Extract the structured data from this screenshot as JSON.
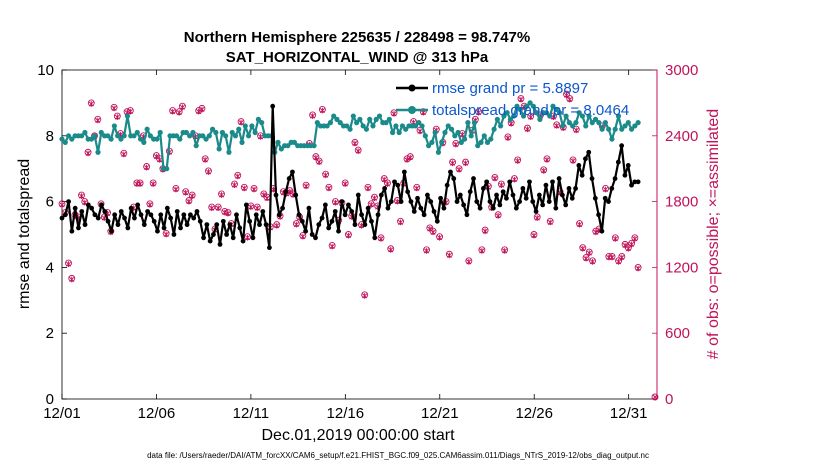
{
  "chart_data": {
    "type": "line",
    "title_line1": "Northern Hemisphere 225635 / 228498 = 98.747%",
    "title_line2": "SAT_HORIZONTAL_WIND @ 313 hPa",
    "xlabel": "Dec.01,2019 00:00:00 start",
    "ylabel_left": "rmse and totalspread",
    "ylabel_right": "# of obs: o=possible; ×=assimilated",
    "footer": "data file: /Users/raeder/DAI/ATM_forcXX/CAM6_setup/f.e21.FHIST_BGC.f09_025.CAM6assim.011/Diags_NTrS_2019-12/obs_diag_output.nc",
    "xlim": [
      1,
      32.5
    ],
    "ylim_left": [
      0,
      10
    ],
    "ylim_right": [
      0,
      3000
    ],
    "x_ticks": [
      1,
      6,
      11,
      16,
      21,
      26,
      31
    ],
    "x_tick_labels": [
      "12/01",
      "12/06",
      "12/11",
      "12/16",
      "12/21",
      "12/26",
      "12/31"
    ],
    "y_ticks_left": [
      0,
      2,
      4,
      6,
      8,
      10
    ],
    "y_ticks_right": [
      0,
      600,
      1200,
      1800,
      2400,
      3000
    ],
    "colors": {
      "rmse": "#000000",
      "spread": "#1a8a8a",
      "obs": "#c0135a",
      "legend_text": "#0b57d0"
    },
    "series": [
      {
        "name": "rmse grand pr = 5.8897",
        "kind": "rmse",
        "values": [
          5.5,
          5.6,
          6.0,
          5.1,
          5.8,
          5.2,
          5.7,
          5.3,
          5.9,
          5.8,
          5.6,
          5.5,
          5.9,
          5.7,
          5.4,
          5.1,
          5.6,
          5.3,
          5.7,
          5.5,
          5.2,
          5.8,
          5.5,
          5.9,
          5.6,
          5.3,
          5.7,
          5.6,
          5.4,
          5.1,
          5.6,
          5.2,
          5.8,
          5.5,
          5.0,
          5.7,
          5.2,
          5.6,
          5.3,
          5.6,
          5.5,
          5.7,
          5.4,
          4.9,
          5.3,
          4.8,
          5.0,
          5.3,
          4.7,
          5.4,
          5.0,
          5.3,
          4.9,
          5.6,
          5.2,
          4.8,
          5.9,
          5.4,
          4.9,
          5.6,
          5.3,
          5.7,
          5.3,
          4.6,
          8.9,
          6.2,
          5.6,
          5.8,
          6.3,
          6.7,
          6.9,
          6.2,
          5.6,
          5.4,
          5.1,
          5.8,
          5.0,
          4.9,
          5.3,
          5.5,
          5.9,
          5.2,
          5.4,
          5.7,
          5.1,
          6.0,
          5.6,
          5.9,
          5.7,
          5.3,
          6.2,
          5.6,
          5.3,
          5.8,
          5.4,
          4.9,
          5.6,
          6.2,
          6.4,
          5.8,
          6.0,
          6.6,
          6.5,
          6.0,
          6.9,
          6.3,
          6.0,
          5.7,
          6.1,
          5.8,
          5.6,
          6.2,
          6.0,
          5.7,
          5.4,
          6.1,
          5.8,
          6.5,
          6.9,
          6.7,
          6.0,
          6.2,
          5.9,
          5.6,
          6.3,
          6.7,
          6.0,
          5.8,
          6.4,
          6.6,
          6.0,
          5.8,
          6.2,
          5.9,
          6.3,
          6.1,
          6.6,
          6.2,
          5.8,
          6.0,
          6.4,
          6.1,
          6.6,
          6.0,
          5.7,
          6.2,
          5.9,
          6.5,
          6.0,
          6.6,
          5.8,
          6.7,
          6.2,
          5.9,
          6.4,
          6.1,
          6.4,
          7.1,
          6.8,
          7.3,
          7.5,
          6.7,
          6.1,
          5.6,
          5.1,
          6.1,
          6.0,
          6.4,
          6.7,
          7.2,
          7.7,
          6.8,
          7.1,
          6.5,
          6.6,
          6.6
        ]
      },
      {
        "name": "totalspread grand pr = 8.0464",
        "kind": "spread",
        "values": [
          7.9,
          7.8,
          8.0,
          7.9,
          8.0,
          8.0,
          8.0,
          8.1,
          7.9,
          7.9,
          8.0,
          7.5,
          8.1,
          8.0,
          8.0,
          7.9,
          8.3,
          8.0,
          7.9,
          8.0,
          8.6,
          8.0,
          8.0,
          8.1,
          7.9,
          7.8,
          8.2,
          8.0,
          7.9,
          7.9,
          8.1,
          7.0,
          7.0,
          8.0,
          8.0,
          8.0,
          7.9,
          8.1,
          8.1,
          8.0,
          8.1,
          7.7,
          8.0,
          8.0,
          7.9,
          8.0,
          8.2,
          8.1,
          7.6,
          8.1,
          8.0,
          7.5,
          8.1,
          8.0,
          8.2,
          7.8,
          8.3,
          8.0,
          8.3,
          8.1,
          8.5,
          8.4,
          8.0,
          8.0,
          8.0,
          7.5,
          7.8,
          7.6,
          7.7,
          7.7,
          7.8,
          7.8,
          7.7,
          7.7,
          7.7,
          7.7,
          7.7,
          7.7,
          8.4,
          8.3,
          8.3,
          8.3,
          8.4,
          8.6,
          8.5,
          8.4,
          8.3,
          8.3,
          8.2,
          8.6,
          8.4,
          8.5,
          8.3,
          8.2,
          8.5,
          8.3,
          8.5,
          8.6,
          8.4,
          8.4,
          8.5,
          8.1,
          8.3,
          8.1,
          8.3,
          8.2,
          8.3,
          8.3,
          8.3,
          8.4,
          8.3,
          8.0,
          7.7,
          7.8,
          8.1,
          7.5,
          7.8,
          8.1,
          8.3,
          8.2,
          8.0,
          8.1,
          7.8,
          7.9,
          8.4,
          8.0,
          8.4,
          7.7,
          7.8,
          8.0,
          7.8,
          7.9,
          8.2,
          8.5,
          8.3,
          8.6,
          8.7,
          8.5,
          8.6,
          8.9,
          8.8,
          8.6,
          8.9,
          9.0,
          8.9,
          8.7,
          8.5,
          8.7,
          8.7,
          8.6,
          8.9,
          8.8,
          8.7,
          8.3,
          8.6,
          8.4,
          8.3,
          8.4,
          8.7,
          8.6,
          8.3,
          8.6,
          8.4,
          8.5,
          8.4,
          8.2,
          8.4,
          8.2,
          7.9,
          8.2,
          8.6,
          8.2,
          8.3,
          8.4,
          8.2,
          8.3,
          8.4
        ]
      },
      {
        "name": "# obs possible",
        "kind": "obs_possible",
        "values": [
          1780,
          1700,
          1240,
          1100,
          1680,
          1660,
          1860,
          1800,
          2250,
          2700,
          2400,
          2550,
          1780,
          1660,
          1700,
          1530,
          2660,
          2580,
          2420,
          2240,
          2620,
          2630,
          1750,
          1970,
          1970,
          2400,
          2120,
          1780,
          1970,
          2220,
          2190,
          2100,
          1510,
          2260,
          2630,
          1920,
          2620,
          2670,
          1890,
          1810,
          1860,
          2400,
          2630,
          2650,
          2190,
          2080,
          1750,
          1550,
          1750,
          1870,
          1710,
          1700,
          1600,
          1960,
          2040,
          2530,
          1930,
          1480,
          1760,
          1920,
          1750,
          2400,
          1870,
          1840,
          1570,
          1920,
          1590,
          1670,
          1890,
          1880,
          1900,
          1870,
          1600,
          1660,
          1490,
          1950,
          2330,
          2590,
          2210,
          2170,
          2640,
          2050,
          1930,
          1400,
          1800,
          1630,
          1790,
          1970,
          1500,
          1670,
          2340,
          2270,
          1590,
          950,
          1930,
          1780,
          1840,
          1760,
          1470,
          2010,
          1970,
          1370,
          2610,
          1810,
          1620,
          1970,
          2190,
          2210,
          2530,
          1930,
          2450,
          2620,
          1360,
          1560,
          1530,
          2460,
          1480,
          2340,
          1800,
          1320,
          2160,
          2330,
          2100,
          2420,
          2160,
          1260,
          2450,
          2550,
          2620,
          1360,
          1540,
          1940,
          1750,
          2020,
          1680,
          1960,
          1360,
          2390,
          2520,
          2010,
          2180,
          2740,
          2670,
          2470,
          2580,
          1500,
          1660,
          2590,
          2090,
          2190,
          1620,
          2580,
          2500,
          1890,
          2480,
          2780,
          2740,
          2180,
          2460,
          1600,
          1380,
          1290,
          1340,
          1260,
          1530,
          1550,
          2490,
          1920,
          1300,
          1300,
          1470,
          1260,
          1300,
          1410,
          1380,
          1420,
          1470,
          1200
        ]
      },
      {
        "name": "# obs assimilated",
        "kind": "obs_assimilated",
        "values": [
          1770,
          1690,
          1230,
          1090,
          1670,
          1650,
          1850,
          1790,
          2240,
          2690,
          2390,
          2540,
          1770,
          1650,
          1690,
          1520,
          2650,
          2570,
          2410,
          2230,
          2610,
          2620,
          1740,
          1960,
          1960,
          2390,
          2110,
          1770,
          1960,
          2210,
          2180,
          2090,
          1500,
          2250,
          2620,
          1910,
          2610,
          2660,
          1880,
          1800,
          1850,
          2390,
          2620,
          2640,
          2180,
          2070,
          1740,
          1540,
          1740,
          1860,
          1700,
          1690,
          1590,
          1950,
          2030,
          2520,
          1920,
          1470,
          1750,
          1910,
          1740,
          2390,
          1860,
          1830,
          1560,
          1910,
          1580,
          1660,
          1880,
          1870,
          1890,
          1860,
          1590,
          1650,
          1480,
          1940,
          2320,
          2580,
          2200,
          2160,
          2630,
          2040,
          1920,
          1390,
          1790,
          1620,
          1780,
          1960,
          1490,
          1660,
          2330,
          2260,
          1580,
          940,
          1920,
          1770,
          1830,
          1750,
          1460,
          2000,
          1960,
          1360,
          2600,
          1800,
          1610,
          1960,
          2180,
          2200,
          2520,
          1920,
          2440,
          2610,
          1350,
          1550,
          1520,
          2450,
          1470,
          2330,
          1790,
          1310,
          2150,
          2320,
          2090,
          2410,
          2150,
          1250,
          2440,
          2540,
          2610,
          1350,
          1530,
          1930,
          1740,
          2010,
          1670,
          1950,
          1350,
          2380,
          2510,
          2000,
          2170,
          2730,
          2660,
          2460,
          2570,
          1490,
          1650,
          2580,
          2080,
          2180,
          1610,
          2570,
          2490,
          1880,
          2470,
          2770,
          2730,
          2170,
          2450,
          1590,
          1370,
          1280,
          1330,
          1250,
          1520,
          1540,
          2480,
          1910,
          1290,
          1290,
          1460,
          1250,
          1290,
          1400,
          1370,
          1410,
          1460,
          1190
        ]
      }
    ],
    "extra_obs_points": [
      {
        "day": 32.5,
        "possible": 0,
        "assimilated": 0
      }
    ]
  }
}
